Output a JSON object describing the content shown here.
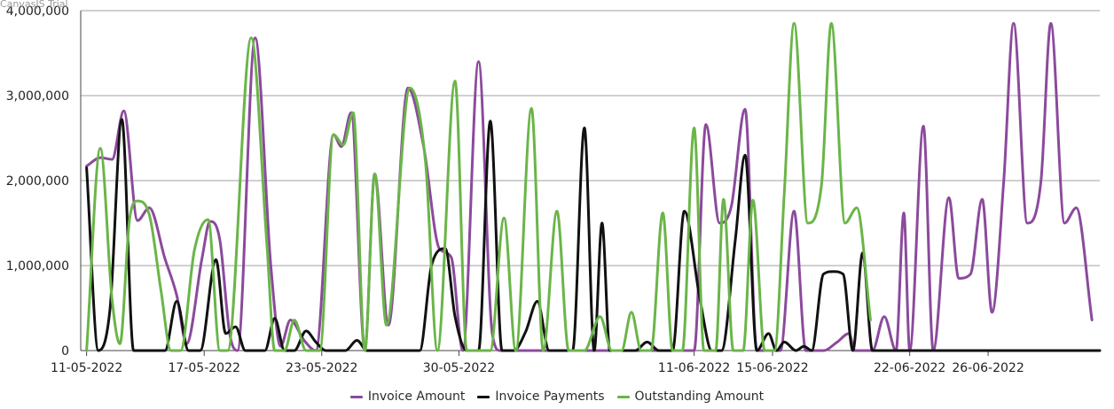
{
  "watermark": "CanvasJS Trial",
  "colors": {
    "invoice_amount": "#8b4a9c",
    "invoice_payments": "#111111",
    "outstanding_amount": "#6ab548",
    "grid": "#a0a0a0",
    "axis": "#444444"
  },
  "legend": {
    "invoice_amount": "Invoice Amount",
    "invoice_payments": "Invoice Payments",
    "outstanding_amount": "Outstanding Amount"
  },
  "chart_data": {
    "type": "line",
    "y_ticks": [
      {
        "value": 0,
        "label": "0"
      },
      {
        "value": 1000000,
        "label": "1,000,000"
      },
      {
        "value": 2000000,
        "label": "2,000,000"
      },
      {
        "value": 3000000,
        "label": "3,000,000"
      },
      {
        "value": 4000000,
        "label": "4,000,000"
      }
    ],
    "x_ticks": [
      {
        "day": 0,
        "label": "11-05-2022"
      },
      {
        "day": 6,
        "label": "17-05-2022"
      },
      {
        "day": 12,
        "label": "23-05-2022"
      },
      {
        "day": 19,
        "label": "30-05-2022"
      },
      {
        "day": 31,
        "label": "11-06-2022"
      },
      {
        "day": 35,
        "label": "15-06-2022"
      },
      {
        "day": 42,
        "label": "22-06-2022"
      },
      {
        "day": 46,
        "label": "26-06-2022"
      }
    ],
    "x_range_days": [
      -0.3,
      51.7
    ],
    "ylim": [
      0,
      4000000
    ],
    "grid": true,
    "legend_position": "bottom",
    "series": [
      {
        "name": "Invoice Amount",
        "key": "invoice_amount",
        "points": [
          [
            0.0,
            2170000
          ],
          [
            0.7,
            2270000
          ],
          [
            1.3,
            2250000
          ],
          [
            1.9,
            2820000
          ],
          [
            2.6,
            1530000
          ],
          [
            3.2,
            1680000
          ],
          [
            4.0,
            1080000
          ],
          [
            4.6,
            650000
          ],
          [
            5.1,
            80000
          ],
          [
            5.9,
            1100000
          ],
          [
            6.3,
            1520000
          ],
          [
            6.8,
            1300000
          ],
          [
            7.3,
            200000
          ],
          [
            7.7,
            0
          ],
          [
            8.6,
            3680000
          ],
          [
            9.4,
            1000000
          ],
          [
            9.9,
            50000
          ],
          [
            10.4,
            360000
          ],
          [
            11.1,
            120000
          ],
          [
            11.7,
            0
          ],
          [
            12.6,
            2540000
          ],
          [
            13.0,
            2400000
          ],
          [
            13.5,
            2800000
          ],
          [
            14.2,
            0
          ],
          [
            14.7,
            2080000
          ],
          [
            15.4,
            300000
          ],
          [
            16.4,
            3090000
          ],
          [
            17.2,
            2400000
          ],
          [
            18.0,
            1200000
          ],
          [
            18.6,
            1100000
          ],
          [
            19.2,
            0
          ],
          [
            20.0,
            3400000
          ],
          [
            20.7,
            200000
          ],
          [
            21.1,
            0
          ],
          [
            31.0,
            0
          ],
          [
            31.6,
            2660000
          ],
          [
            32.3,
            1500000
          ],
          [
            32.9,
            1700000
          ],
          [
            33.6,
            2840000
          ],
          [
            34.2,
            0
          ],
          [
            35.4,
            0
          ],
          [
            36.1,
            1640000
          ],
          [
            36.7,
            0
          ],
          [
            37.6,
            0
          ],
          [
            38.3,
            100000
          ],
          [
            38.9,
            200000
          ],
          [
            39.2,
            0
          ],
          [
            40.1,
            0
          ],
          [
            40.7,
            400000
          ],
          [
            41.3,
            0
          ],
          [
            41.7,
            1620000
          ],
          [
            42.0,
            0
          ],
          [
            42.7,
            2640000
          ],
          [
            43.2,
            0
          ],
          [
            44.0,
            1800000
          ],
          [
            44.5,
            850000
          ],
          [
            45.1,
            900000
          ],
          [
            45.7,
            1780000
          ],
          [
            46.2,
            450000
          ],
          [
            46.8,
            2000000
          ],
          [
            47.3,
            3850000
          ],
          [
            48.0,
            1500000
          ],
          [
            48.7,
            2000000
          ],
          [
            49.2,
            3850000
          ],
          [
            49.9,
            1500000
          ],
          [
            50.5,
            1680000
          ],
          [
            51.3,
            360000
          ]
        ]
      },
      {
        "name": "Invoice Payments",
        "key": "invoice_payments",
        "points": [
          [
            0.0,
            2150000
          ],
          [
            0.6,
            0
          ],
          [
            1.2,
            500000
          ],
          [
            1.8,
            2720000
          ],
          [
            2.4,
            0
          ],
          [
            2.8,
            0
          ],
          [
            3.4,
            0
          ],
          [
            4.0,
            0
          ],
          [
            4.6,
            580000
          ],
          [
            5.2,
            0
          ],
          [
            5.8,
            0
          ],
          [
            6.6,
            1070000
          ],
          [
            7.1,
            200000
          ],
          [
            7.6,
            280000
          ],
          [
            8.1,
            0
          ],
          [
            9.1,
            0
          ],
          [
            9.6,
            380000
          ],
          [
            10.1,
            0
          ],
          [
            10.6,
            0
          ],
          [
            11.2,
            230000
          ],
          [
            11.7,
            100000
          ],
          [
            12.2,
            0
          ],
          [
            13.2,
            0
          ],
          [
            13.8,
            120000
          ],
          [
            14.3,
            0
          ],
          [
            17.0,
            0
          ],
          [
            17.6,
            1000000
          ],
          [
            18.3,
            1200000
          ],
          [
            18.8,
            400000
          ],
          [
            19.4,
            0
          ],
          [
            20.0,
            0
          ],
          [
            20.6,
            2700000
          ],
          [
            21.2,
            0
          ],
          [
            21.8,
            0
          ],
          [
            22.4,
            220000
          ],
          [
            23.0,
            580000
          ],
          [
            23.6,
            0
          ],
          [
            24.8,
            0
          ],
          [
            25.4,
            2620000
          ],
          [
            25.9,
            0
          ],
          [
            26.3,
            1500000
          ],
          [
            26.7,
            0
          ],
          [
            28.0,
            0
          ],
          [
            28.6,
            100000
          ],
          [
            29.2,
            0
          ],
          [
            29.9,
            0
          ],
          [
            30.5,
            1640000
          ],
          [
            31.3,
            600000
          ],
          [
            31.9,
            0
          ],
          [
            32.4,
            0
          ],
          [
            33.1,
            1300000
          ],
          [
            33.6,
            2300000
          ],
          [
            34.2,
            0
          ],
          [
            34.8,
            200000
          ],
          [
            35.2,
            0
          ],
          [
            35.6,
            100000
          ],
          [
            36.2,
            0
          ],
          [
            36.6,
            50000
          ],
          [
            37.0,
            0
          ],
          [
            37.6,
            900000
          ],
          [
            38.1,
            930000
          ],
          [
            38.6,
            900000
          ],
          [
            39.1,
            0
          ],
          [
            39.6,
            1150000
          ],
          [
            40.1,
            0
          ],
          [
            41.0,
            0
          ],
          [
            51.7,
            0
          ]
        ]
      },
      {
        "name": "Outstanding Amount",
        "key": "outstanding_amount",
        "points": [
          [
            0.0,
            0
          ],
          [
            0.7,
            2380000
          ],
          [
            1.3,
            600000
          ],
          [
            1.7,
            80000
          ],
          [
            2.2,
            1560000
          ],
          [
            2.6,
            1760000
          ],
          [
            3.2,
            1600000
          ],
          [
            3.8,
            700000
          ],
          [
            4.3,
            0
          ],
          [
            4.8,
            0
          ],
          [
            5.5,
            1180000
          ],
          [
            6.2,
            1540000
          ],
          [
            6.8,
            0
          ],
          [
            7.2,
            0
          ],
          [
            8.4,
            3680000
          ],
          [
            9.2,
            1250000
          ],
          [
            9.6,
            0
          ],
          [
            10.1,
            0
          ],
          [
            10.6,
            360000
          ],
          [
            11.2,
            0
          ],
          [
            11.9,
            0
          ],
          [
            12.6,
            2540000
          ],
          [
            13.1,
            2420000
          ],
          [
            13.6,
            2800000
          ],
          [
            14.2,
            0
          ],
          [
            14.7,
            2080000
          ],
          [
            15.3,
            300000
          ],
          [
            16.5,
            3090000
          ],
          [
            17.3,
            2200000
          ],
          [
            17.9,
            0
          ],
          [
            18.8,
            3170000
          ],
          [
            19.4,
            0
          ],
          [
            20.6,
            0
          ],
          [
            21.3,
            1560000
          ],
          [
            21.9,
            0
          ],
          [
            22.7,
            2850000
          ],
          [
            23.3,
            0
          ],
          [
            24.0,
            1640000
          ],
          [
            24.6,
            0
          ],
          [
            25.4,
            0
          ],
          [
            26.2,
            400000
          ],
          [
            26.8,
            0
          ],
          [
            27.3,
            0
          ],
          [
            27.8,
            450000
          ],
          [
            28.3,
            0
          ],
          [
            28.8,
            0
          ],
          [
            29.4,
            1620000
          ],
          [
            29.9,
            0
          ],
          [
            30.4,
            0
          ],
          [
            31.0,
            2620000
          ],
          [
            31.5,
            0
          ],
          [
            32.1,
            0
          ],
          [
            32.5,
            1780000
          ],
          [
            33.0,
            0
          ],
          [
            33.5,
            0
          ],
          [
            34.0,
            1770000
          ],
          [
            34.6,
            0
          ],
          [
            35.1,
            0
          ],
          [
            35.6,
            1850000
          ],
          [
            36.1,
            3850000
          ],
          [
            36.8,
            1500000
          ],
          [
            37.5,
            1950000
          ],
          [
            38.0,
            3850000
          ],
          [
            38.7,
            1500000
          ],
          [
            39.3,
            1680000
          ],
          [
            40.0,
            360000
          ]
        ]
      }
    ]
  }
}
